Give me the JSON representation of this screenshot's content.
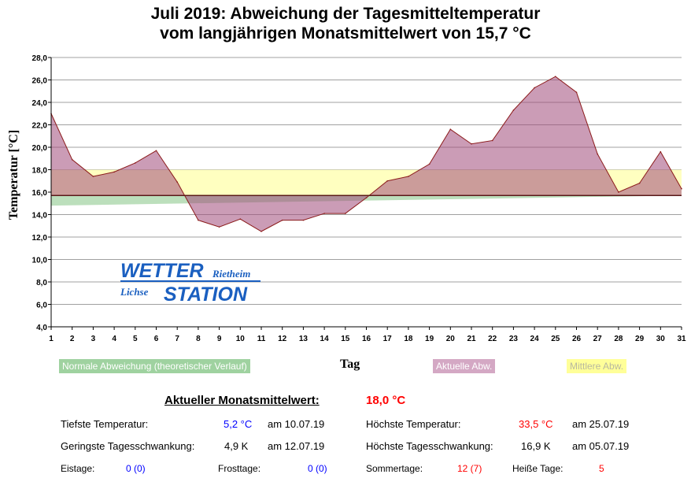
{
  "title_line1": "Juli 2019: Abweichung der Tagesmitteltemperatur",
  "title_line2": "vom langjährigen Monatsmittelwert von 15,7 °C",
  "chart_data": {
    "type": "area",
    "xlabel": "Tag",
    "ylabel": "Temperatur [°C]",
    "ylim": [
      4,
      28
    ],
    "yticks": [
      "4,0",
      "6,0",
      "8,0",
      "10,0",
      "12,0",
      "14,0",
      "16,0",
      "18,0",
      "20,0",
      "22,0",
      "24,0",
      "26,0",
      "28,0"
    ],
    "x": [
      1,
      2,
      3,
      4,
      5,
      6,
      7,
      8,
      9,
      10,
      11,
      12,
      13,
      14,
      15,
      16,
      17,
      18,
      19,
      20,
      21,
      22,
      23,
      24,
      25,
      26,
      27,
      28,
      29,
      30,
      31
    ],
    "baseline": 15.7,
    "series": [
      {
        "name": "Aktuelle Abw.",
        "color": "#c38aa8",
        "values": [
          23.0,
          18.9,
          17.4,
          17.8,
          18.6,
          19.7,
          16.9,
          13.5,
          12.9,
          13.6,
          12.5,
          13.5,
          13.5,
          14.1,
          14.1,
          15.5,
          17.0,
          17.4,
          18.5,
          21.6,
          20.3,
          20.6,
          23.3,
          25.3,
          26.3,
          24.9,
          19.4,
          16.0,
          16.8,
          19.6,
          16.3
        ]
      },
      {
        "name": "Mittlere Abw.",
        "color": "#ffffc0",
        "value": 18.0
      },
      {
        "name": "Normale Abweichung (theoretischer Verlauf)",
        "color": "#9fd2a0",
        "start": 14.8,
        "end": 15.7
      }
    ],
    "grid": true
  },
  "legend": {
    "normal": "Normale Abweichung (theoretischer Verlauf)",
    "actual": "Aktuelle Abw.",
    "mean": "Mittlere Abw."
  },
  "logo": {
    "line1": "WETTER",
    "line1b": "Rietheim",
    "line2a": "Lichse",
    "line2": "STATION"
  },
  "stats": {
    "monthly_label": "Aktueller Monatsmittelwert:",
    "monthly_value": "18,0 °C",
    "min_label": "Tiefste Temperatur:",
    "min_value": "5,2 °C",
    "min_date": "am 10.07.19",
    "max_label": "Höchste Temperatur:",
    "max_value": "33,5 °C",
    "max_date": "am 25.07.19",
    "minvar_label": "Geringste Tagesschwankung:",
    "minvar_value": "4,9 K",
    "minvar_date": "am 12.07.19",
    "maxvar_label": "Höchste Tagesschwankung:",
    "maxvar_value": "16,9 K",
    "maxvar_date": "am 05.07.19",
    "ice_label": "Eistage:",
    "ice_value": "0 (0)",
    "frost_label": "Frosttage:",
    "frost_value": "0 (0)",
    "summer_label": "Sommertage:",
    "summer_value": "12 (7)",
    "hot_label": "Heiße Tage:",
    "hot_value": "5"
  }
}
